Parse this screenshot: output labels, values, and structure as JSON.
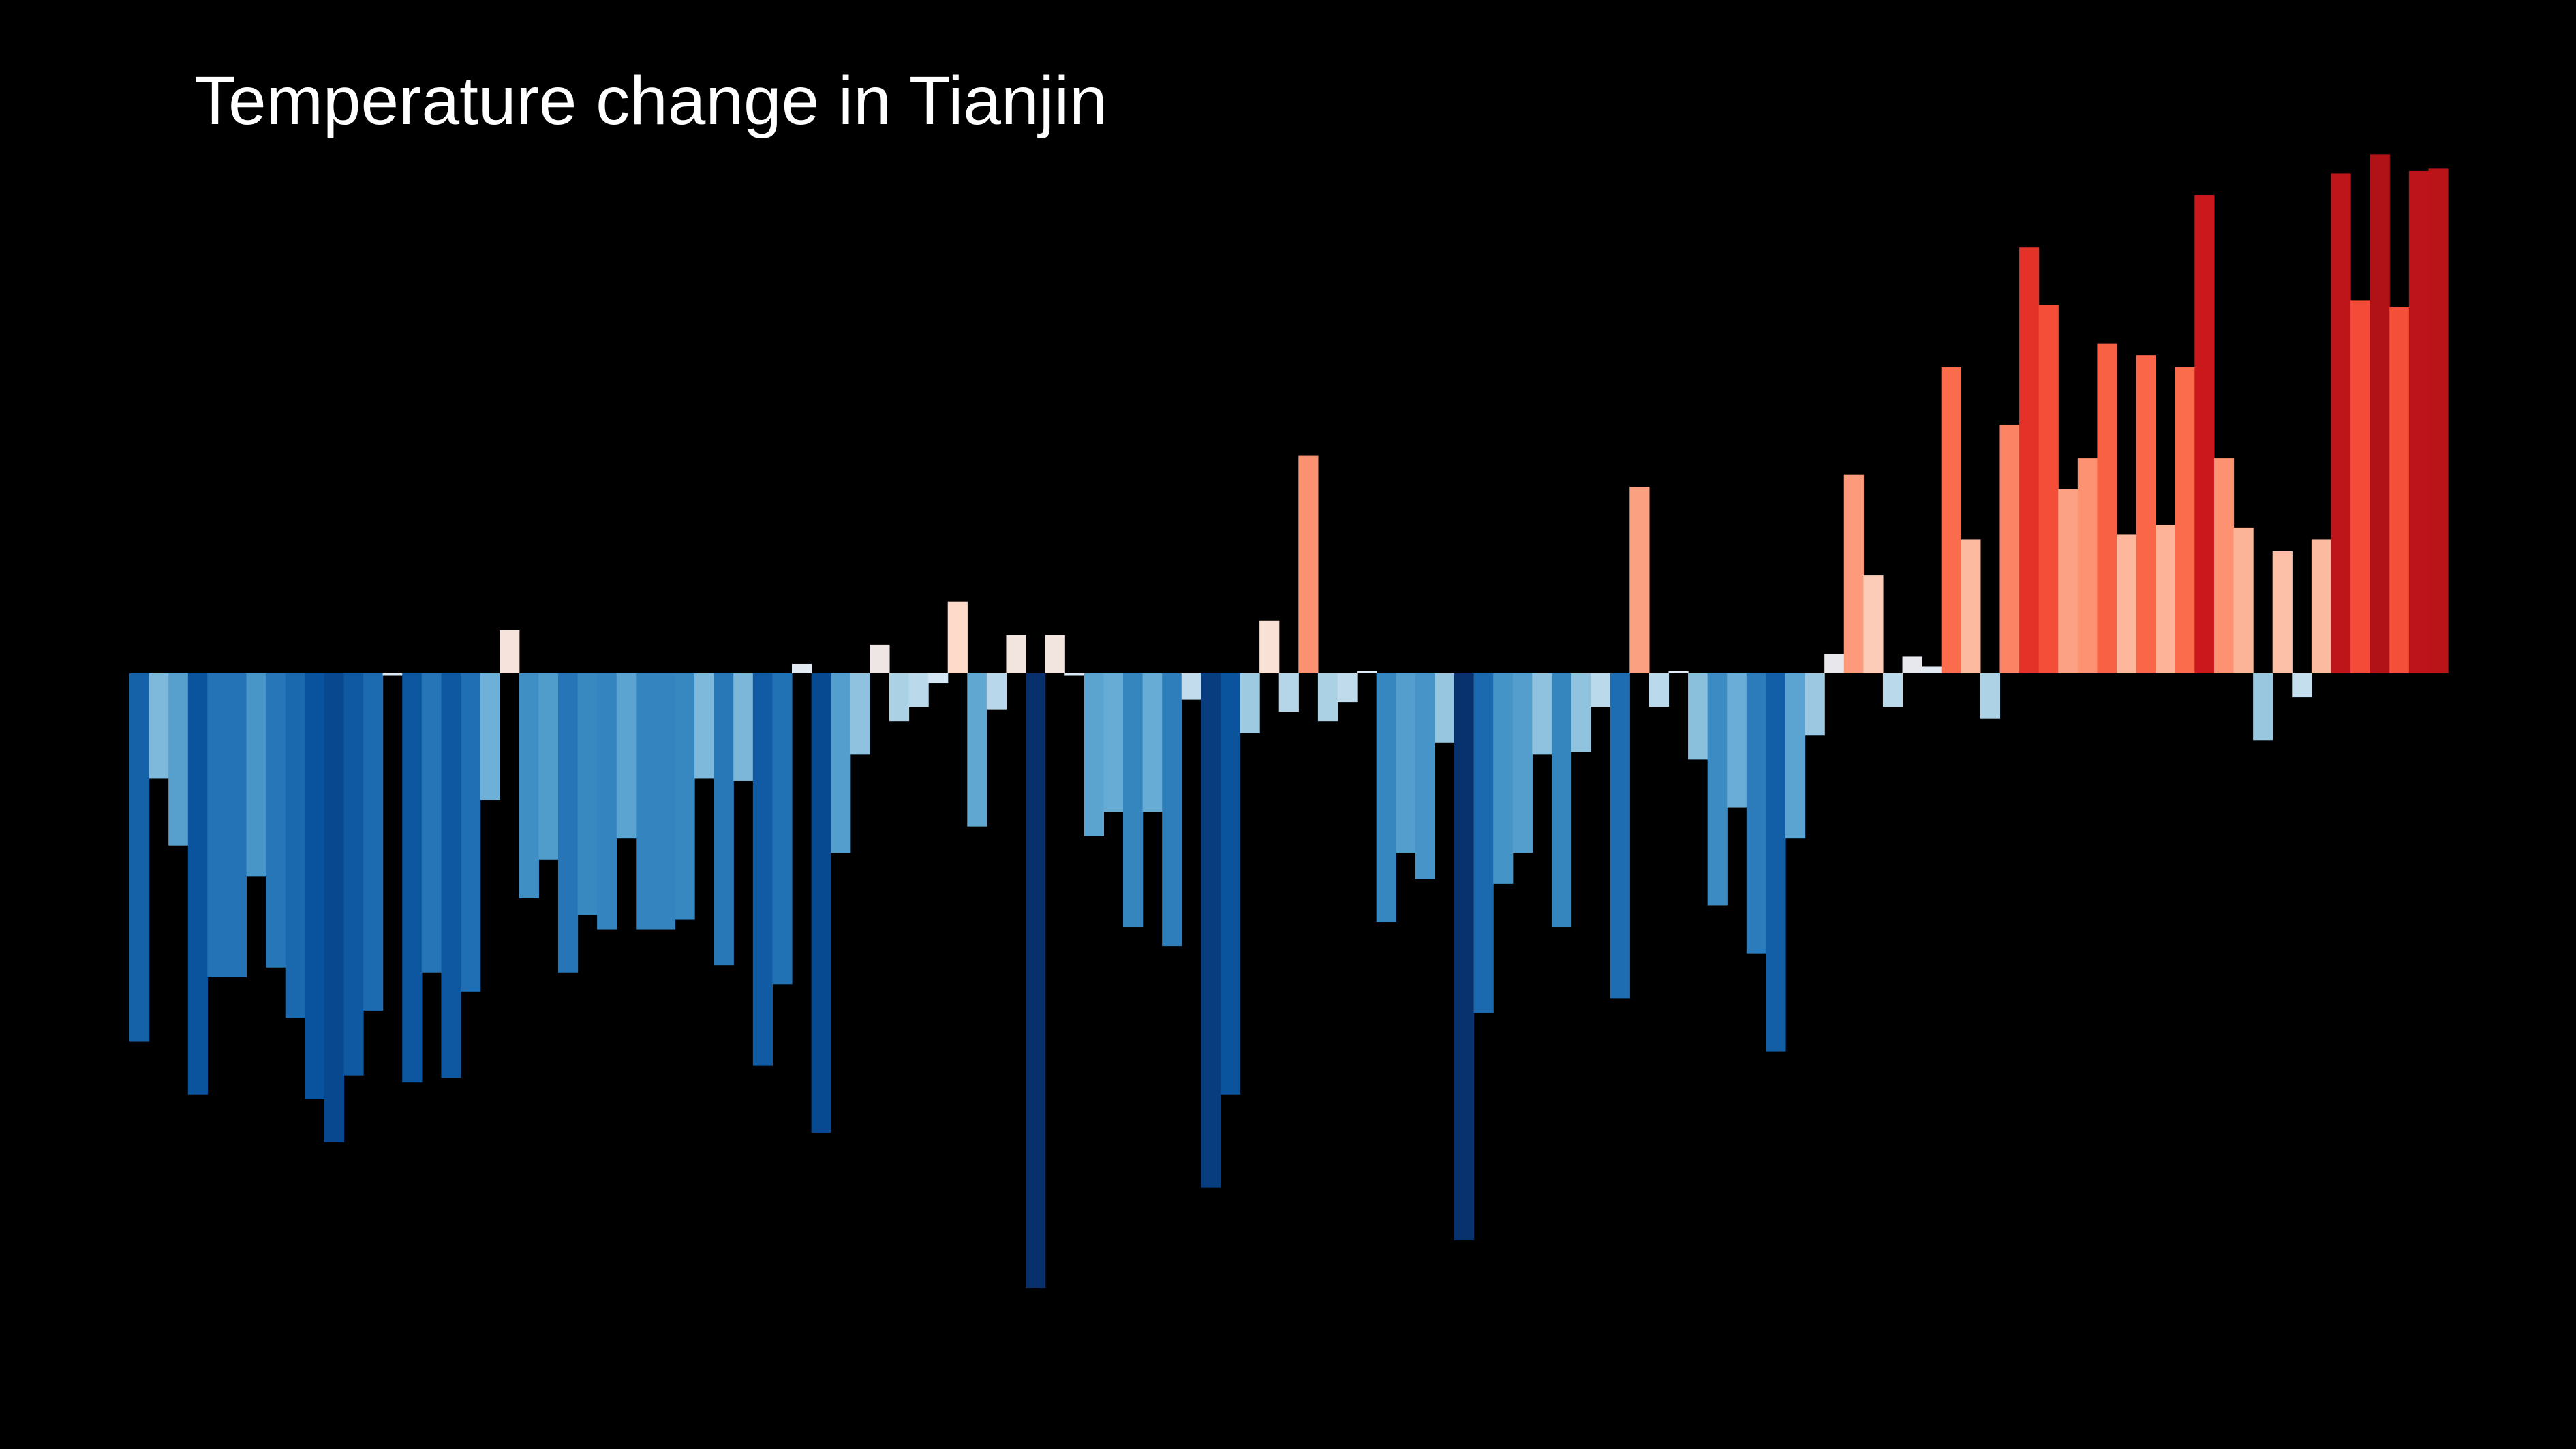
{
  "chart_data": {
    "type": "bar",
    "title": "Temperature change in Tianjin",
    "xlabel": "",
    "ylabel": "",
    "ylim": [
      -2.8,
      2.6
    ],
    "grid": false,
    "legend": false,
    "background": "#000000",
    "colors": {
      "cold_extreme": "#08306b",
      "cold": "#2171b5",
      "cool": "#6baed6",
      "neutral_cool": "#deebf7",
      "neutral_warm": "#fee0d2",
      "warm": "#fb6a4a",
      "hot": "#cb181d",
      "hot_extreme": "#67000d"
    },
    "values": [
      -1.54,
      -0.44,
      -0.72,
      -1.76,
      -1.27,
      -1.27,
      -0.85,
      -1.23,
      -1.44,
      -1.78,
      -1.96,
      -1.68,
      -1.41,
      -0.01,
      -1.71,
      -1.25,
      -1.69,
      -1.33,
      -0.53,
      0.18,
      -0.94,
      -0.78,
      -1.25,
      -1.01,
      -1.07,
      -0.69,
      -1.07,
      -1.07,
      -1.03,
      -0.44,
      -1.22,
      -0.45,
      -1.64,
      -1.3,
      0.04,
      -1.92,
      -0.75,
      -0.34,
      0.12,
      -0.2,
      -0.14,
      -0.04,
      0.3,
      -0.64,
      -0.15,
      0.16,
      -2.57,
      0.16,
      -0.01,
      -0.68,
      -0.58,
      -1.06,
      -0.58,
      -1.14,
      -0.11,
      -2.15,
      -1.76,
      -0.25,
      0.22,
      -0.16,
      0.91,
      -0.2,
      -0.12,
      0.01,
      -1.04,
      -0.75,
      -0.86,
      -0.29,
      -2.37,
      -1.42,
      -0.88,
      -0.75,
      -0.34,
      -1.06,
      -0.33,
      -0.14,
      -1.36,
      0.78,
      -0.14,
      0.01,
      -0.36,
      -0.97,
      -0.56,
      -1.17,
      -1.58,
      -0.69,
      -0.26,
      0.08,
      0.83,
      0.41,
      -0.14,
      0.07,
      0.03,
      1.28,
      0.56,
      -0.19,
      1.04,
      1.78,
      1.54,
      0.77,
      0.9,
      1.38,
      0.58,
      1.33,
      0.62,
      1.28,
      2.0,
      0.9,
      0.61,
      -0.28,
      0.51,
      -0.1,
      0.56,
      2.09,
      1.56,
      2.17,
      1.53,
      2.1,
      2.11
    ]
  }
}
